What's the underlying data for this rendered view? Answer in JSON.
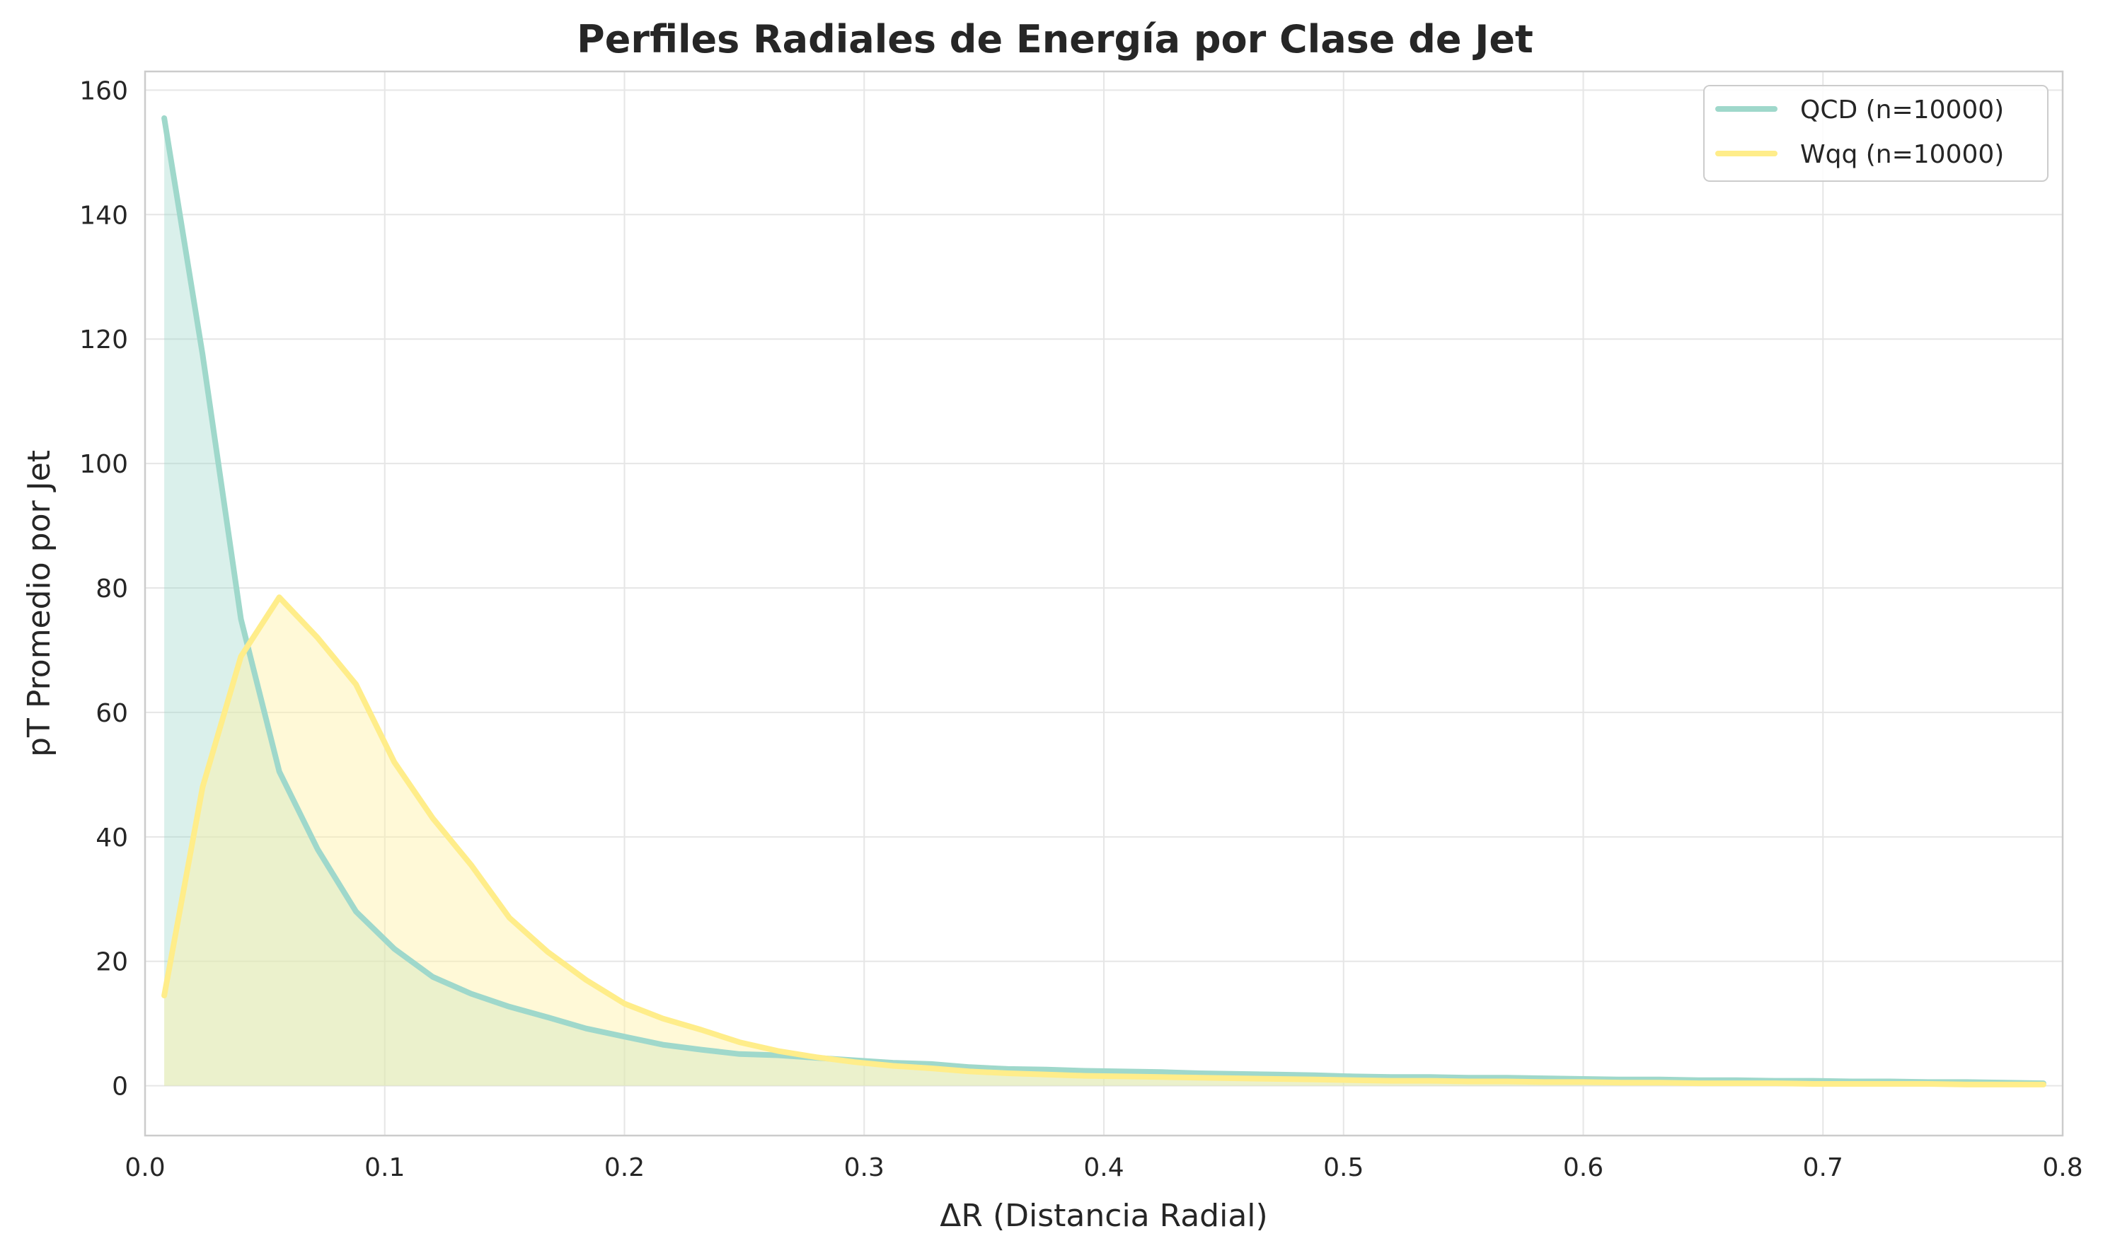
{
  "chart_data": {
    "type": "area",
    "title": "Perfiles Radiales de Energía por Clase de Jet",
    "xlabel": "ΔR (Distancia Radial)",
    "ylabel": "pT Promedio por Jet",
    "xlim": [
      0.0,
      0.8
    ],
    "ylim": [
      -8,
      163
    ],
    "x_ticks": [
      "0.0",
      "0.1",
      "0.2",
      "0.3",
      "0.4",
      "0.5",
      "0.6",
      "0.7",
      "0.8"
    ],
    "y_ticks": [
      "0",
      "20",
      "40",
      "60",
      "80",
      "100",
      "120",
      "140",
      "160"
    ],
    "grid": true,
    "legend_position": "top-right",
    "x": [
      0.008,
      0.024,
      0.04,
      0.056,
      0.072,
      0.088,
      0.104,
      0.12,
      0.136,
      0.152,
      0.168,
      0.184,
      0.2,
      0.216,
      0.232,
      0.248,
      0.264,
      0.28,
      0.296,
      0.312,
      0.328,
      0.344,
      0.36,
      0.376,
      0.392,
      0.408,
      0.424,
      0.44,
      0.456,
      0.472,
      0.488,
      0.504,
      0.52,
      0.536,
      0.552,
      0.568,
      0.584,
      0.6,
      0.616,
      0.632,
      0.648,
      0.664,
      0.68,
      0.696,
      0.712,
      0.728,
      0.744,
      0.76,
      0.776,
      0.792
    ],
    "series": [
      {
        "name": "QCD (n=10000)",
        "color": "#9fd8cb",
        "fill_color": "#9fd8cb",
        "values": [
          155.5,
          117.5,
          75.0,
          50.5,
          38.0,
          28.0,
          22.0,
          17.5,
          14.8,
          12.7,
          11.0,
          9.2,
          7.9,
          6.6,
          5.8,
          5.1,
          4.9,
          4.5,
          4.1,
          3.7,
          3.5,
          3.0,
          2.7,
          2.6,
          2.4,
          2.3,
          2.2,
          2.0,
          1.9,
          1.8,
          1.7,
          1.5,
          1.4,
          1.4,
          1.3,
          1.3,
          1.2,
          1.1,
          1.0,
          1.0,
          0.9,
          0.9,
          0.8,
          0.8,
          0.7,
          0.7,
          0.6,
          0.6,
          0.5,
          0.4
        ]
      },
      {
        "name": "Wqq (n=10000)",
        "color": "#ffed8a",
        "fill_color": "#fff2a6",
        "values": [
          14.5,
          48.0,
          69.0,
          78.5,
          72.0,
          64.5,
          52.0,
          43.0,
          35.5,
          27.0,
          21.5,
          17.0,
          13.2,
          10.8,
          9.0,
          7.0,
          5.6,
          4.6,
          3.8,
          3.2,
          2.8,
          2.3,
          2.0,
          1.8,
          1.6,
          1.5,
          1.4,
          1.3,
          1.2,
          1.1,
          1.0,
          0.9,
          0.8,
          0.8,
          0.7,
          0.7,
          0.6,
          0.6,
          0.5,
          0.5,
          0.4,
          0.4,
          0.4,
          0.3,
          0.3,
          0.3,
          0.3,
          0.2,
          0.2,
          0.2
        ]
      }
    ]
  }
}
